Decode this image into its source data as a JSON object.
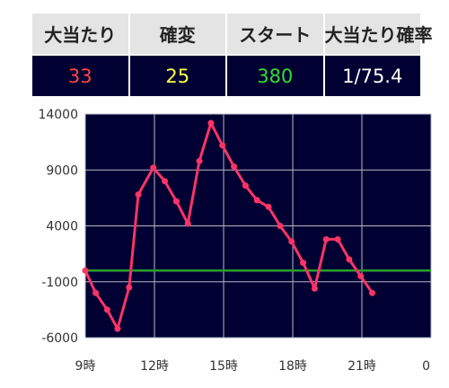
{
  "stats": {
    "headers": [
      "大当たり",
      "確変",
      "スタート",
      "大当たり確率"
    ],
    "values": [
      "33",
      "25",
      "380",
      "1/75.4"
    ],
    "value_colors": [
      "#ff4444",
      "#ffff44",
      "#33dd33",
      "#ffffff"
    ],
    "background": "#000033"
  },
  "chart_data": {
    "type": "line",
    "title": "",
    "xlabel": "",
    "ylabel": "",
    "x_ticks": [
      "9時",
      "12時",
      "15時",
      "18時",
      "21時",
      "0"
    ],
    "x_tick_hours": [
      9,
      12,
      15,
      18,
      21,
      24
    ],
    "y_ticks": [
      "14000",
      "9000",
      "4000",
      "-1000",
      "-6000"
    ],
    "y_tick_values": [
      14000,
      9000,
      4000,
      -1000,
      -6000
    ],
    "xlim": [
      9,
      24
    ],
    "ylim": [
      -6000,
      14000
    ],
    "grid": true,
    "background": "#000033",
    "baseline": {
      "y": 0,
      "color": "#2aa02a"
    },
    "series": [
      {
        "color": "#ff3366",
        "x": [
          9.0,
          9.45,
          9.95,
          10.4,
          10.9,
          11.3,
          11.95,
          12.45,
          12.95,
          13.45,
          13.95,
          14.45,
          14.95,
          15.45,
          15.95,
          16.45,
          16.95,
          17.45,
          17.95,
          18.45,
          18.95,
          19.45,
          19.95,
          20.45,
          20.95,
          21.45
        ],
        "y": [
          0,
          -2000,
          -3500,
          -5200,
          -1500,
          6800,
          9200,
          8000,
          6200,
          4200,
          9800,
          13200,
          11200,
          9300,
          7600,
          6300,
          5700,
          4000,
          2600,
          700,
          -1600,
          2800,
          2800,
          1000,
          -500,
          -2000
        ]
      }
    ]
  }
}
